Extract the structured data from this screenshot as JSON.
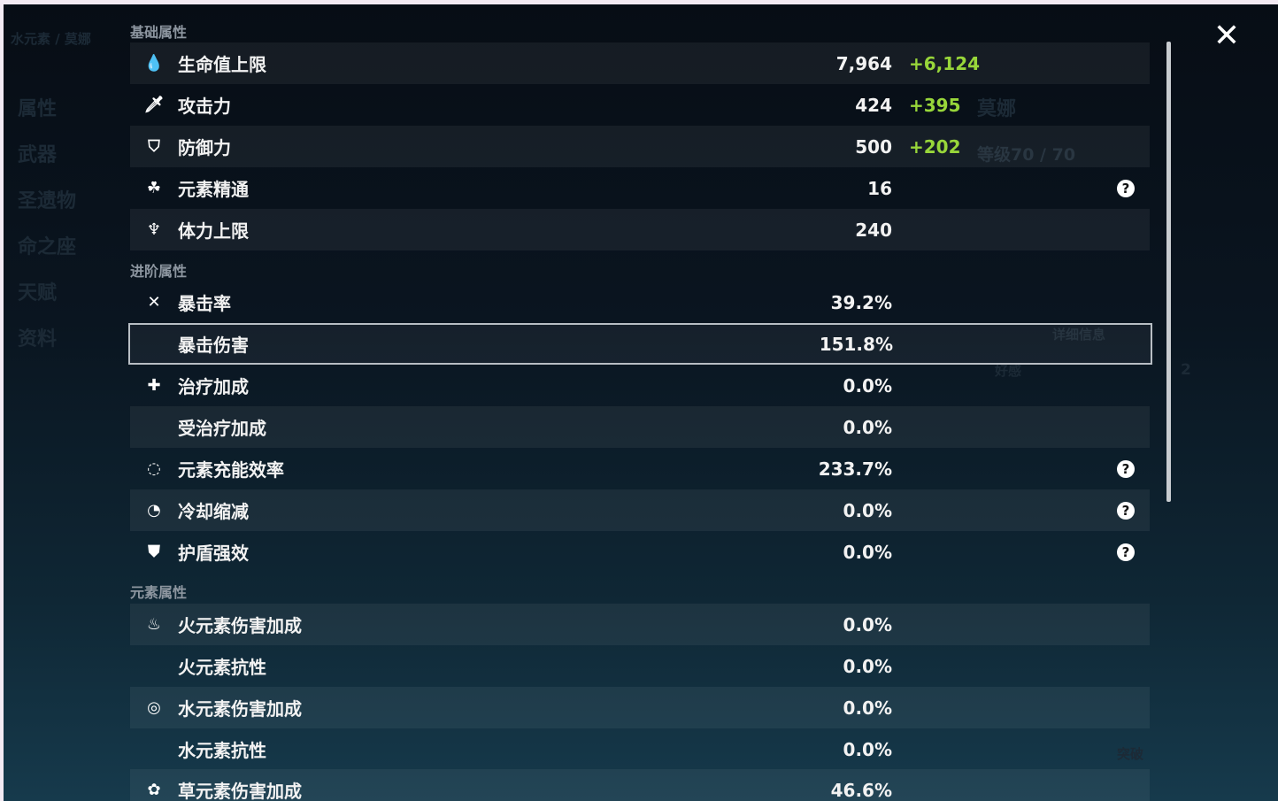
{
  "background": {
    "element": "水元素 / 莫娜",
    "menu": [
      "属性",
      "武器",
      "圣遗物",
      "命之座",
      "天赋",
      "资料"
    ],
    "name": "莫娜",
    "level": "等级70 / 70",
    "detail_button": "详细信息",
    "favor": "好感",
    "favor_value": "2",
    "breakthrough": "突破"
  },
  "sections": {
    "base": "基础属性",
    "advanced": "进阶属性",
    "elemental": "元素属性"
  },
  "base": [
    {
      "icon": "hp-drop-icon",
      "glyph": "💧",
      "label": "生命值上限",
      "value": "7,964",
      "bonus": "+6,124"
    },
    {
      "icon": "sword-icon",
      "glyph": "🗡",
      "label": "攻击力",
      "value": "424",
      "bonus": "+395"
    },
    {
      "icon": "shield-icon",
      "glyph": "⛉",
      "label": "防御力",
      "value": "500",
      "bonus": "+202"
    },
    {
      "icon": "elemental-mastery-icon",
      "glyph": "☘",
      "label": "元素精通",
      "value": "16",
      "bonus": "",
      "help": true
    },
    {
      "icon": "stamina-icon",
      "glyph": "♆",
      "label": "体力上限",
      "value": "240",
      "bonus": ""
    }
  ],
  "advanced": [
    {
      "icon": "crit-rate-icon",
      "glyph": "✕",
      "label": "暴击率",
      "value": "39.2%"
    },
    {
      "icon": "",
      "glyph": "",
      "label": "暴击伤害",
      "value": "151.8%",
      "selected": true
    },
    {
      "icon": "healing-cross-icon",
      "glyph": "✚",
      "label": "治疗加成",
      "value": "0.0%"
    },
    {
      "icon": "",
      "glyph": "",
      "label": "受治疗加成",
      "value": "0.0%"
    },
    {
      "icon": "energy-recharge-icon",
      "glyph": "◌",
      "label": "元素充能效率",
      "value": "233.7%",
      "help": true
    },
    {
      "icon": "cooldown-icon",
      "glyph": "◔",
      "label": "冷却缩减",
      "value": "0.0%",
      "help": true
    },
    {
      "icon": "shield-strength-icon",
      "glyph": "⛊",
      "label": "护盾强效",
      "value": "0.0%",
      "help": true
    }
  ],
  "elemental": [
    {
      "icon": "pyro-icon",
      "glyph": "♨",
      "label": "火元素伤害加成",
      "value": "0.0%"
    },
    {
      "icon": "",
      "glyph": "",
      "label": "火元素抗性",
      "value": "0.0%"
    },
    {
      "icon": "hydro-icon",
      "glyph": "◎",
      "label": "水元素伤害加成",
      "value": "0.0%"
    },
    {
      "icon": "",
      "glyph": "",
      "label": "水元素抗性",
      "value": "0.0%"
    },
    {
      "icon": "dendro-icon",
      "glyph": "✿",
      "label": "草元素伤害加成",
      "value": "46.6%"
    }
  ],
  "colors": {
    "bonus": "#98d63a",
    "background": "#0a1520"
  }
}
